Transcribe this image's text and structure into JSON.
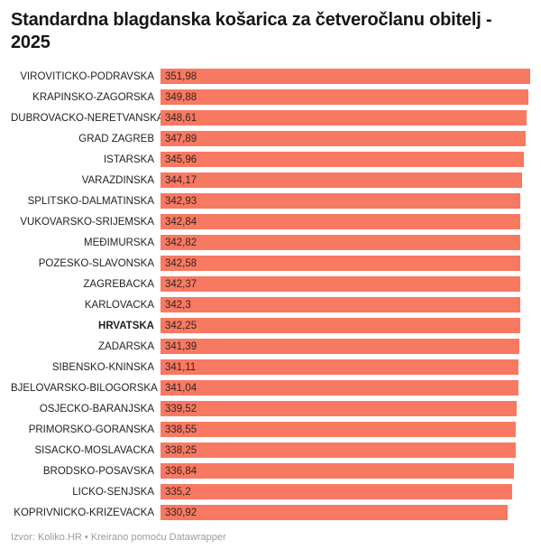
{
  "title": "Standardna blagdanska košarica za četveročlanu obitelj - 2025",
  "footer": "Izvor: Koliko.HR • Kreirano pomoću Datawrapper",
  "colors": {
    "bar": "#f87962",
    "value_text": "#332420",
    "title_text": "#151515",
    "label_text": "#1f1f1f",
    "footer_text": "#9b9b9b"
  },
  "chart_data": {
    "type": "bar",
    "orientation": "horizontal",
    "title": "Standardna blagdanska košarica za četveročlanu obitelj - 2025",
    "xlabel": "",
    "ylabel": "",
    "xlim": [
      0,
      351.98
    ],
    "grid": false,
    "legend": false,
    "bold_category": "HRVATSKA",
    "categories": [
      "VIROVITIČKO-PODRAVSKA",
      "KRAPINSKO-ZAGORSKA",
      "DUBROVAČKO-NERETVANSKA",
      "GRAD ZAGREB",
      "ISTARSKA",
      "VARAŽDINSKA",
      "SPLITSKO-DALMATINSKA",
      "VUKOVARSKO-SRIJEMSKA",
      "MEĐIMURSKA",
      "POŽEŠKO-SLAVONSKA",
      "ZAGREBAČKA",
      "KARLOVAČKA",
      "HRVATSKA",
      "ZADARSKA",
      "ŠIBENSKO-KNINSKA",
      "BJELOVARSKO-BILOGORSKA",
      "OSJEČKO-BARANJSKA",
      "PRIMORSKO-GORANSKA",
      "SISAČKO-MOSLAVAČKA",
      "BRODSKO-POSAVSKA",
      "LIČKO-SENJSKA",
      "KOPRIVNIČKO-KRIŽEVAČKA"
    ],
    "values": [
      351.98,
      349.88,
      348.61,
      347.89,
      345.96,
      344.17,
      342.93,
      342.84,
      342.82,
      342.58,
      342.37,
      342.3,
      342.25,
      341.39,
      341.11,
      341.04,
      339.52,
      338.55,
      338.25,
      336.84,
      335.2,
      330.92
    ],
    "value_labels": [
      "351,98",
      "349,88",
      "348,61",
      "347,89",
      "345,96",
      "344,17",
      "342,93",
      "342,84",
      "342,82",
      "342,58",
      "342,37",
      "342,3",
      "342,25",
      "341,39",
      "341,11",
      "341,04",
      "339,52",
      "338,55",
      "338,25",
      "336,84",
      "335,2",
      "330,92"
    ]
  }
}
